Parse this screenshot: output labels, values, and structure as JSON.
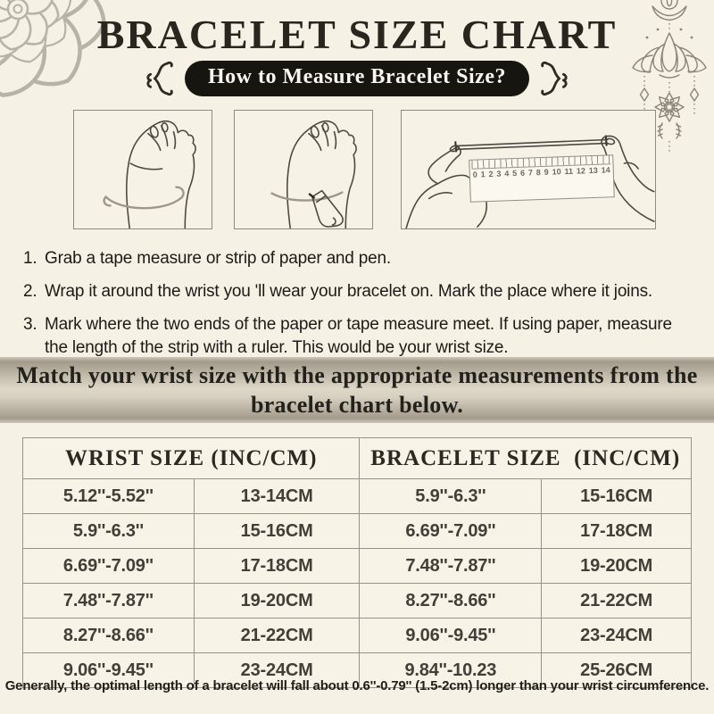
{
  "header": {
    "title": "BRACELET SIZE CHART",
    "subtitle": "How to Measure Bracelet Size?"
  },
  "steps": [
    {
      "num": "1.",
      "text": "Grab a tape measure or strip of paper and pen."
    },
    {
      "num": "2.",
      "text": "Wrap it around the wrist you 'll wear your bracelet on. Mark the place where it joins."
    },
    {
      "num": "3.",
      "text": "Mark where the two ends of the paper or tape measure meet. If using paper, measure the length of the strip with a ruler. This would be your wrist size."
    }
  ],
  "banner": {
    "text": "Match your wrist size with the appropriate measurements from the bracelet chart below."
  },
  "table": {
    "headers": [
      "WRIST SIZE (INC/CM)",
      "BRACELET SIZE  (INC/CM)"
    ],
    "rows": [
      [
        "5.12''-5.52''",
        "13-14CM",
        "5.9''-6.3''",
        "15-16CM"
      ],
      [
        "5.9''-6.3''",
        "15-16CM",
        "6.69''-7.09''",
        "17-18CM"
      ],
      [
        "6.69''-7.09''",
        "17-18CM",
        "7.48''-7.87''",
        "19-20CM"
      ],
      [
        "7.48''-7.87''",
        "19-20CM",
        "8.27''-8.66''",
        "21-22CM"
      ],
      [
        "8.27''-8.66''",
        "21-22CM",
        "9.06''-9.45''",
        "23-24CM"
      ],
      [
        "9.06''-9.45''",
        "23-24CM",
        "9.84''-10.23",
        "25-26CM"
      ]
    ]
  },
  "footnote": "Generally, the optimal length of a bracelet will fall about 0.6''-0.79'' (1.5-2cm) longer than your wrist circumference.",
  "illustrations": {
    "items": [
      {
        "icon": "wrap-tape-around-wrist-illustration"
      },
      {
        "icon": "mark-wrist-with-pen-illustration"
      },
      {
        "icon": "measure-strip-with-ruler-illustration"
      }
    ],
    "ruler_numbers": [
      0,
      1,
      2,
      3,
      4,
      5,
      6,
      7,
      8,
      9,
      10,
      11,
      12,
      13,
      14
    ]
  },
  "icons": {
    "corner": "mandala-flower-icon",
    "hanging": "lotus-dreamcatcher-icon",
    "flourish": "squiggle-brace-icon"
  },
  "colors": {
    "background": "#f5f1e4",
    "pill": "#17150f",
    "banner_dark": "#a39a8c",
    "banner_light": "#ded7c8",
    "table_border": "#98938a"
  }
}
